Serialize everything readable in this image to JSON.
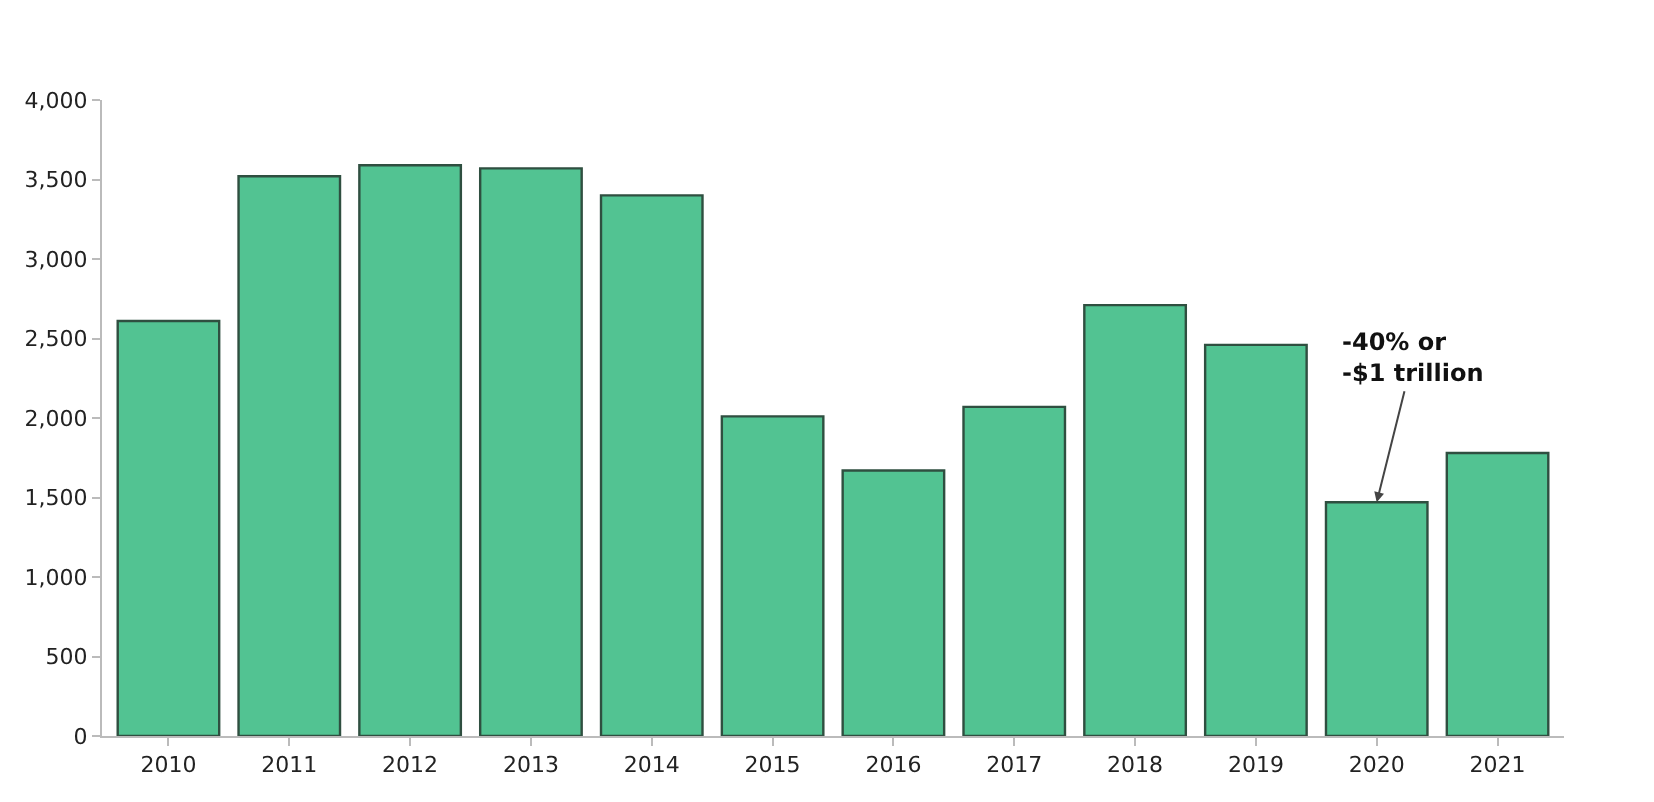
{
  "chart_data": {
    "type": "bar",
    "categories": [
      "2010",
      "2011",
      "2012",
      "2013",
      "2014",
      "2015",
      "2016",
      "2017",
      "2018",
      "2019",
      "2020",
      "2021"
    ],
    "values": [
      2610,
      3520,
      3590,
      3570,
      3400,
      2010,
      1670,
      2070,
      2710,
      2460,
      1470,
      1780
    ],
    "color": "#52c392",
    "ylim": [
      0,
      4000
    ],
    "yticks": [
      {
        "value": 0,
        "label": "0"
      },
      {
        "value": 500,
        "label": "500"
      },
      {
        "value": 1000,
        "label": "1,000"
      },
      {
        "value": 1500,
        "label": "1,500"
      },
      {
        "value": 2000,
        "label": "2,000"
      },
      {
        "value": 2500,
        "label": "2,500"
      },
      {
        "value": 3000,
        "label": "3,000"
      },
      {
        "value": 3500,
        "label": "3,500"
      },
      {
        "value": 4000,
        "label": "4,000"
      }
    ],
    "annotations": [
      {
        "text": "-40% or\n-$1 trillion",
        "x": "2020",
        "y": 1470
      }
    ]
  }
}
